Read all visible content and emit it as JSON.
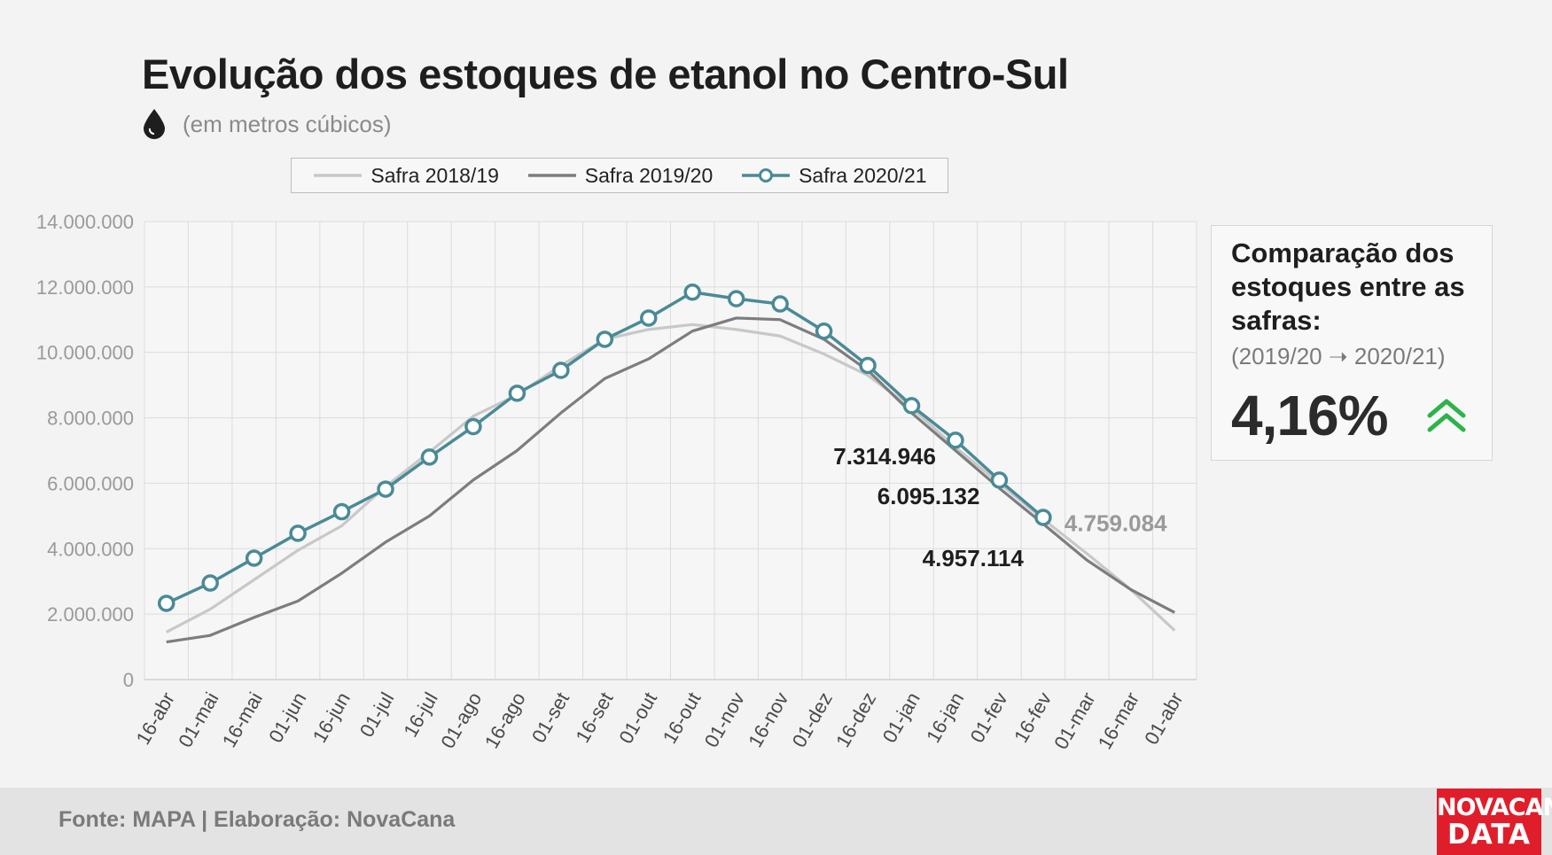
{
  "header": {
    "title": "Evolução dos estoques de etanol no Centro-Sul",
    "subtitle": "(em metros cúbicos)",
    "icon": "drop-icon"
  },
  "chart_data": {
    "type": "line",
    "categories": [
      "16-abr",
      "01-mai",
      "16-mai",
      "01-jun",
      "16-jun",
      "01-jul",
      "16-jul",
      "01-ago",
      "16-ago",
      "01-set",
      "16-set",
      "01-out",
      "16-out",
      "01-nov",
      "16-nov",
      "01-dez",
      "16-dez",
      "01-jan",
      "16-jan",
      "01-fev",
      "16-fev",
      "01-mar",
      "16-mar",
      "01-abr"
    ],
    "ylim": [
      0,
      14000000
    ],
    "y_ticks": [
      {
        "value": 0,
        "label": "0"
      },
      {
        "value": 2000000,
        "label": "2.000.000"
      },
      {
        "value": 4000000,
        "label": "4.000.000"
      },
      {
        "value": 6000000,
        "label": "6.000.000"
      },
      {
        "value": 8000000,
        "label": "8.000.000"
      },
      {
        "value": 10000000,
        "label": "10.000.000"
      },
      {
        "value": 12000000,
        "label": "12.000.000"
      },
      {
        "value": 14000000,
        "label": "14.000.000"
      }
    ],
    "grid": true,
    "legend_position": "top",
    "series": [
      {
        "name": "Safra 2018/19",
        "color": "#c8c8c8",
        "values": [
          1450000,
          2150000,
          3050000,
          3950000,
          4700000,
          5900000,
          6950000,
          8050000,
          8700000,
          9600000,
          10400000,
          10700000,
          10850000,
          10700000,
          10500000,
          9950000,
          9300000,
          8300000,
          7100000,
          6000000,
          4900000,
          3850000,
          2750000,
          1500000
        ]
      },
      {
        "name": "Safra 2019/20",
        "color": "#7d7d7d",
        "values": [
          1150000,
          1350000,
          1900000,
          2400000,
          3250000,
          4200000,
          5000000,
          6100000,
          7000000,
          8150000,
          9200000,
          9800000,
          10650000,
          11050000,
          11000000,
          10400000,
          9450000,
          8150000,
          7000000,
          5850000,
          4759084,
          3650000,
          2750000,
          2050000
        ]
      },
      {
        "name": "Safra 2020/21",
        "color": "#4a8a96",
        "markers": true,
        "values": [
          2330000,
          2950000,
          3710000,
          4470000,
          5130000,
          5820000,
          6800000,
          7730000,
          8750000,
          9450000,
          10400000,
          11050000,
          11840000,
          11640000,
          11480000,
          10650000,
          9600000,
          8370000,
          7314946,
          6095132,
          4957114,
          null,
          null,
          null
        ]
      }
    ],
    "annotations": [
      {
        "label": "7.314.946",
        "category": "16-jan",
        "value": 7314946,
        "color": "#1e1e1e"
      },
      {
        "label": "6.095.132",
        "category": "01-fev",
        "value": 6095132,
        "color": "#1e1e1e"
      },
      {
        "label": "4.957.114",
        "category": "16-fev",
        "value": 4957114,
        "color": "#1e1e1e"
      },
      {
        "label": "4.759.084",
        "category": "16-fev",
        "value": 4759084,
        "color": "#9a9a9a"
      }
    ]
  },
  "panel": {
    "title": "Comparação dos estoques entre as safras:",
    "subtitle": "(2019/20 ➝ 2020/21)",
    "value": "4,16%",
    "trend_icon": "double-chevron-up-icon",
    "trend_color": "#2db34a"
  },
  "footer": {
    "text": "Fonte: MAPA  | Elaboração: NovaCana",
    "brand_line1": "NOVACANA",
    "brand_line2": "DATA"
  }
}
